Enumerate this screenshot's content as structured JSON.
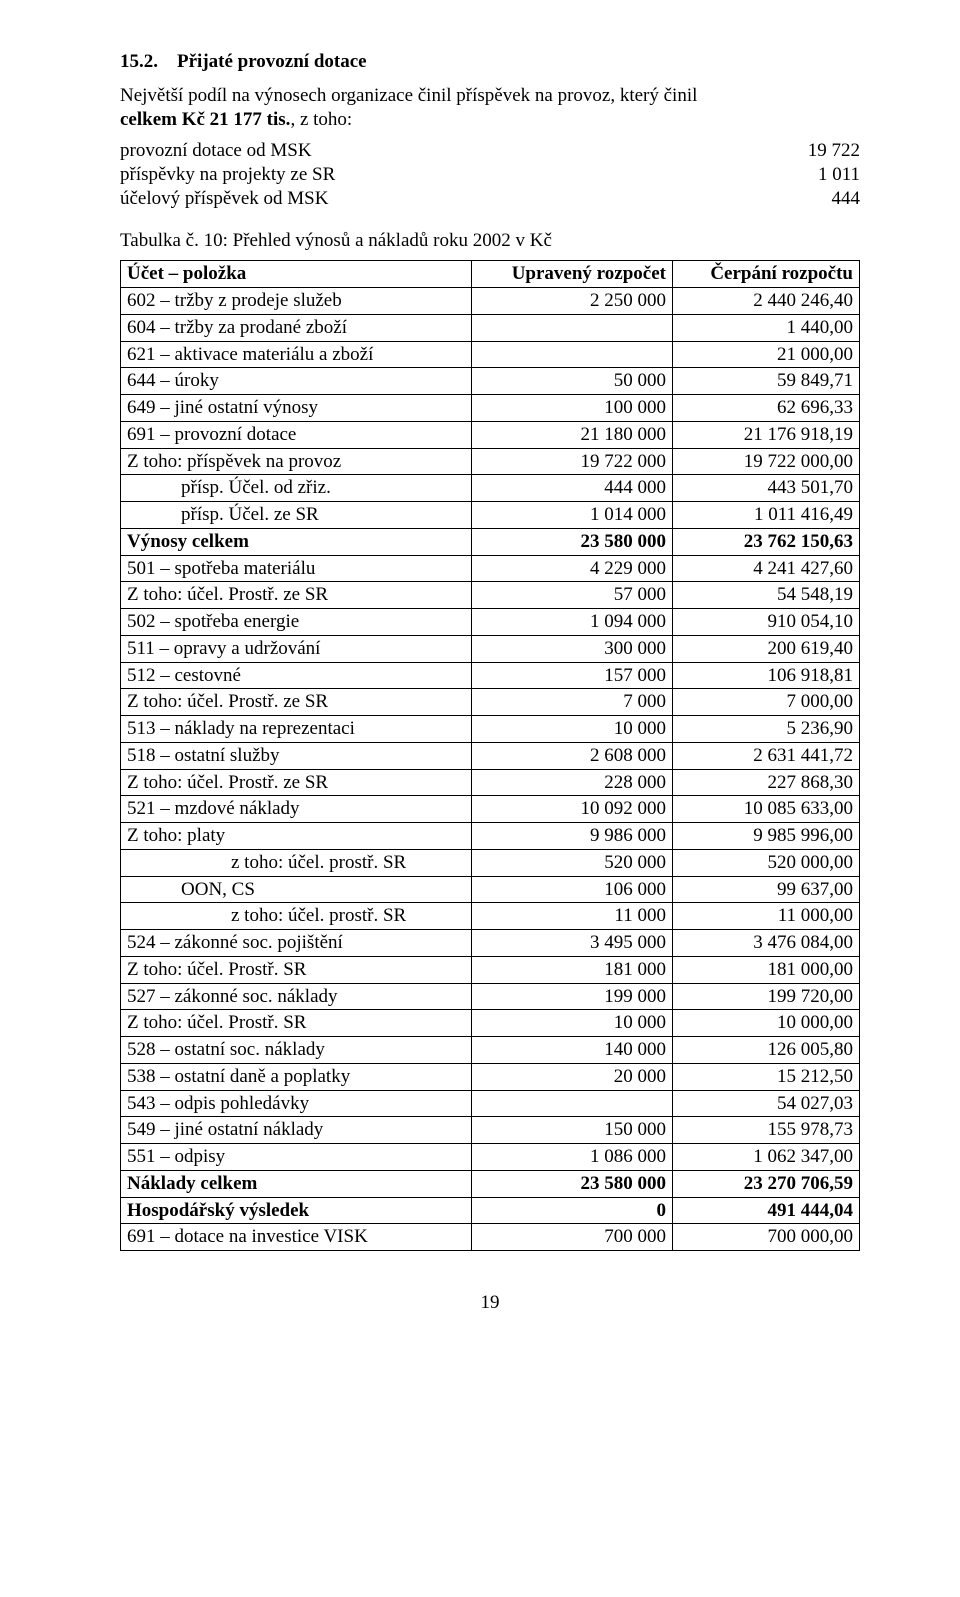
{
  "section": {
    "number": "15.2.",
    "title": "Přijaté provozní dotace"
  },
  "intro": {
    "line1_prefix": "Největší podíl na výnosech organizace činil příspěvek na provoz, který činil",
    "line2_bold": "celkem Kč 21 177 tis.",
    "line2_rest": ", z toho:"
  },
  "list": [
    {
      "label": "provozní dotace od MSK",
      "value": "19 722"
    },
    {
      "label": "příspěvky na projekty ze SR",
      "value": "1 011"
    },
    {
      "label": "účelový příspěvek od MSK",
      "value": "444"
    }
  ],
  "table_caption": "Tabulka č. 10: Přehled výnosů a nákladů roku 2002 v Kč",
  "table": {
    "headers": [
      "Účet – položka",
      "Upravený rozpočet",
      "Čerpání rozpočtu"
    ],
    "rows": [
      {
        "label": "602 – tržby z prodeje služeb",
        "c1": "2 250 000",
        "c2": "2 440 246,40",
        "indent": 0,
        "bold": false
      },
      {
        "label": "604 – tržby za prodané zboží",
        "c1": "",
        "c2": "1 440,00",
        "indent": 0,
        "bold": false
      },
      {
        "label": "621 – aktivace materiálu a zboží",
        "c1": "",
        "c2": "21 000,00",
        "indent": 0,
        "bold": false
      },
      {
        "label": "644 – úroky",
        "c1": "50 000",
        "c2": "59 849,71",
        "indent": 0,
        "bold": false
      },
      {
        "label": "649 – jiné ostatní výnosy",
        "c1": "100 000",
        "c2": "62 696,33",
        "indent": 0,
        "bold": false
      },
      {
        "label": "691 – provozní dotace",
        "c1": "21 180 000",
        "c2": "21 176 918,19",
        "indent": 0,
        "bold": false
      },
      {
        "label": "Z toho: příspěvek na provoz",
        "c1": "19 722 000",
        "c2": "19 722 000,00",
        "indent": 0,
        "bold": false
      },
      {
        "label": "přísp. Účel. od zřiz.",
        "c1": "444 000",
        "c2": "443 501,70",
        "indent": 1,
        "bold": false
      },
      {
        "label": "přísp. Účel. ze SR",
        "c1": "1 014 000",
        "c2": "1 011 416,49",
        "indent": 1,
        "bold": false
      },
      {
        "label": "Výnosy celkem",
        "c1": "23 580 000",
        "c2": "23 762 150,63",
        "indent": 0,
        "bold": true
      },
      {
        "label": "501 – spotřeba materiálu",
        "c1": "4 229 000",
        "c2": "4 241 427,60",
        "indent": 0,
        "bold": false
      },
      {
        "label": "Z toho: účel. Prostř. ze SR",
        "c1": "57 000",
        "c2": "54 548,19",
        "indent": 0,
        "bold": false
      },
      {
        "label": "502 – spotřeba energie",
        "c1": "1 094 000",
        "c2": "910 054,10",
        "indent": 0,
        "bold": false
      },
      {
        "label": "511 – opravy a udržování",
        "c1": "300 000",
        "c2": "200 619,40",
        "indent": 0,
        "bold": false
      },
      {
        "label": "512 – cestovné",
        "c1": "157 000",
        "c2": "106 918,81",
        "indent": 0,
        "bold": false
      },
      {
        "label": "Z toho: účel. Prostř. ze SR",
        "c1": "7 000",
        "c2": "7 000,00",
        "indent": 0,
        "bold": false
      },
      {
        "label": "513 – náklady na reprezentaci",
        "c1": "10 000",
        "c2": "5 236,90",
        "indent": 0,
        "bold": false
      },
      {
        "label": "518 – ostatní služby",
        "c1": "2 608 000",
        "c2": "2 631 441,72",
        "indent": 0,
        "bold": false
      },
      {
        "label": "Z toho: účel. Prostř. ze SR",
        "c1": "228 000",
        "c2": "227 868,30",
        "indent": 0,
        "bold": false
      },
      {
        "label": "521 – mzdové náklady",
        "c1": "10 092 000",
        "c2": "10 085 633,00",
        "indent": 0,
        "bold": false
      },
      {
        "label": "Z toho: platy",
        "c1": "9 986 000",
        "c2": "9 985 996,00",
        "indent": 0,
        "bold": false
      },
      {
        "label": "z toho: účel. prostř. SR",
        "c1": "520 000",
        "c2": "520 000,00",
        "indent": 2,
        "bold": false
      },
      {
        "label": "OON, CS",
        "c1": "106 000",
        "c2": "99 637,00",
        "indent": 1,
        "bold": false
      },
      {
        "label": "z toho: účel. prostř. SR",
        "c1": "11 000",
        "c2": "11 000,00",
        "indent": 2,
        "bold": false
      },
      {
        "label": "524 – zákonné soc. pojištění",
        "c1": "3 495 000",
        "c2": "3 476 084,00",
        "indent": 0,
        "bold": false
      },
      {
        "label": "Z toho: účel. Prostř. SR",
        "c1": "181 000",
        "c2": "181 000,00",
        "indent": 0,
        "bold": false
      },
      {
        "label": "527 – zákonné soc. náklady",
        "c1": "199 000",
        "c2": "199 720,00",
        "indent": 0,
        "bold": false
      },
      {
        "label": "Z toho: účel. Prostř. SR",
        "c1": "10 000",
        "c2": "10 000,00",
        "indent": 0,
        "bold": false
      },
      {
        "label": "528 – ostatní soc. náklady",
        "c1": "140 000",
        "c2": "126 005,80",
        "indent": 0,
        "bold": false
      },
      {
        "label": "538 – ostatní daně a poplatky",
        "c1": "20 000",
        "c2": "15 212,50",
        "indent": 0,
        "bold": false
      },
      {
        "label": "543 – odpis pohledávky",
        "c1": "",
        "c2": "54 027,03",
        "indent": 0,
        "bold": false
      },
      {
        "label": "549 – jiné ostatní náklady",
        "c1": "150 000",
        "c2": "155 978,73",
        "indent": 0,
        "bold": false
      },
      {
        "label": "551 – odpisy",
        "c1": "1 086 000",
        "c2": "1 062 347,00",
        "indent": 0,
        "bold": false
      },
      {
        "label": "Náklady celkem",
        "c1": "23 580 000",
        "c2": "23 270 706,59",
        "indent": 0,
        "bold": true
      },
      {
        "label": "Hospodářský výsledek",
        "c1": "0",
        "c2": "491 444,04",
        "indent": 0,
        "bold": true
      },
      {
        "label": "691 – dotace na investice VISK",
        "c1": "700 000",
        "c2": "700 000,00",
        "indent": 0,
        "bold": false
      }
    ]
  },
  "page_number": "19"
}
